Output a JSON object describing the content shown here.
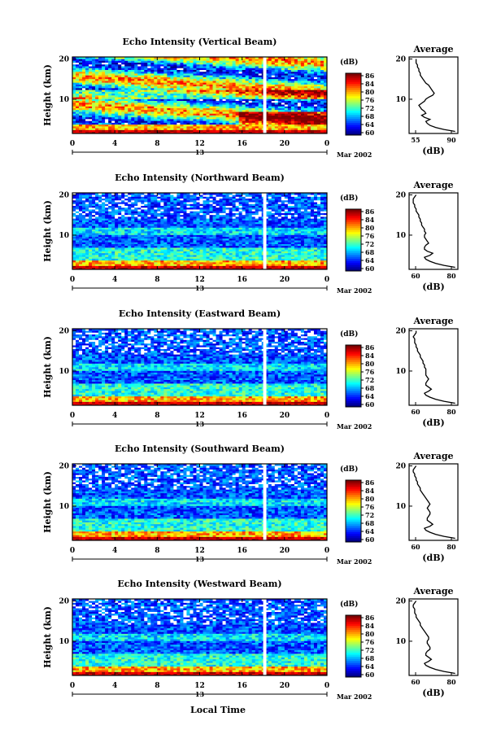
{
  "figure": {
    "xlabel": "Local Time",
    "ylabel": "Height (km)",
    "date_label": "Mar 2002",
    "colorbar_unit": "(dB)",
    "average_title": "Average",
    "average_xlabel": "(dB)"
  },
  "chart_data": [
    {
      "type": "heatmap",
      "title": "Echo Intensity (Vertical Beam)",
      "x_ticks": [
        "0",
        "4",
        "8",
        "12",
        "16",
        "20",
        "0"
      ],
      "x_range": [
        0,
        24
      ],
      "day_label": "13",
      "y_ticks": [
        "20",
        "10"
      ],
      "y_range": [
        1.5,
        20.5
      ],
      "gap_time": 18.1,
      "colorbar": {
        "ticks": [
          "86",
          "84",
          "80",
          "76",
          "72",
          "68",
          "64",
          "60"
        ],
        "range": [
          60,
          86
        ]
      },
      "profile": {
        "xlim": [
          55,
          90
        ],
        "x_ticks": [
          "55",
          "90"
        ],
        "y_ticks": [
          "20",
          "10"
        ],
        "heights": [
          2,
          2.5,
          3,
          3.5,
          4,
          4.5,
          5,
          5.5,
          6,
          6.5,
          7,
          7.5,
          8,
          8.5,
          9,
          9.5,
          10,
          10.5,
          11,
          11.5,
          12,
          12.5,
          13,
          13.5,
          14,
          14.5,
          15,
          15.5,
          16,
          16.5,
          17,
          17.5,
          18,
          18.5,
          19,
          19.5,
          20
        ],
        "values": [
          88,
          80,
          74,
          70,
          68,
          67,
          70,
          66,
          64,
          67,
          66,
          64,
          63,
          62,
          64,
          66,
          67,
          69,
          72,
          73,
          72,
          71,
          70,
          69,
          67,
          66,
          65,
          64,
          63,
          63,
          62,
          62,
          61,
          61,
          60,
          60,
          60
        ]
      }
    },
    {
      "type": "heatmap",
      "title": "Echo Intensity (Northward Beam)",
      "x_ticks": [
        "0",
        "4",
        "8",
        "12",
        "16",
        "20",
        "0"
      ],
      "x_range": [
        0,
        24
      ],
      "day_label": "13",
      "y_ticks": [
        "20",
        "10"
      ],
      "y_range": [
        1.5,
        20.5
      ],
      "gap_time": 18.1,
      "colorbar": {
        "ticks": [
          "86",
          "84",
          "80",
          "76",
          "72",
          "68",
          "64",
          "60"
        ],
        "range": [
          60,
          86
        ]
      },
      "profile": {
        "xlim": [
          55,
          90
        ],
        "x_ticks": [
          "60",
          "80"
        ],
        "y_ticks": [
          "20",
          "10"
        ],
        "heights": [
          2,
          2.5,
          3,
          3.5,
          4,
          4.5,
          5,
          5.5,
          6,
          6.5,
          7,
          7.5,
          8,
          8.5,
          9,
          9.5,
          10,
          10.5,
          11,
          11.5,
          12,
          12.5,
          13,
          13.5,
          14,
          14.5,
          15,
          15.5,
          16,
          16.5,
          17,
          17.5,
          18,
          18.5,
          19,
          19.5,
          20
        ],
        "values": [
          88,
          80,
          74,
          70,
          67,
          66,
          70,
          72,
          68,
          66,
          66,
          67,
          69,
          68,
          67,
          66,
          66,
          67,
          66,
          66,
          65,
          64,
          64,
          63,
          63,
          62,
          62,
          61,
          60,
          60,
          59,
          59,
          58,
          58,
          58,
          59,
          60
        ]
      }
    },
    {
      "type": "heatmap",
      "title": "Echo Intensity (Eastward Beam)",
      "x_ticks": [
        "0",
        "4",
        "8",
        "12",
        "16",
        "20",
        "0"
      ],
      "x_range": [
        0,
        24
      ],
      "day_label": "13",
      "y_ticks": [
        "20",
        "10"
      ],
      "y_range": [
        1.5,
        20.5
      ],
      "gap_time": 18.1,
      "colorbar": {
        "ticks": [
          "86",
          "84",
          "80",
          "76",
          "72",
          "68",
          "64",
          "60"
        ],
        "range": [
          60,
          86
        ]
      },
      "profile": {
        "xlim": [
          55,
          90
        ],
        "x_ticks": [
          "60",
          "80"
        ],
        "y_ticks": [
          "20",
          "10"
        ],
        "heights": [
          2,
          2.5,
          3,
          3.5,
          4,
          4.5,
          5,
          5.5,
          6,
          6.5,
          7,
          7.5,
          8,
          8.5,
          9,
          9.5,
          10,
          10.5,
          11,
          11.5,
          12,
          12.5,
          13,
          13.5,
          14,
          14.5,
          15,
          15.5,
          16,
          16.5,
          17,
          17.5,
          18,
          18.5,
          19,
          19.5,
          20
        ],
        "values": [
          88,
          80,
          74,
          70,
          67,
          66,
          69,
          71,
          69,
          67,
          67,
          68,
          69,
          68,
          67,
          67,
          67,
          67,
          66,
          66,
          65,
          65,
          64,
          63,
          63,
          62,
          61,
          61,
          60,
          60,
          59,
          59,
          59,
          58,
          59,
          60,
          60
        ]
      }
    },
    {
      "type": "heatmap",
      "title": "Echo Intensity (Southward Beam)",
      "x_ticks": [
        "0",
        "4",
        "8",
        "12",
        "16",
        "20",
        "0"
      ],
      "x_range": [
        0,
        24
      ],
      "day_label": "13",
      "y_ticks": [
        "20",
        "10"
      ],
      "y_range": [
        1.5,
        20.5
      ],
      "gap_time": 18.1,
      "colorbar": {
        "ticks": [
          "86",
          "84",
          "80",
          "76",
          "72",
          "68",
          "64",
          "60"
        ],
        "range": [
          60,
          86
        ]
      },
      "profile": {
        "xlim": [
          55,
          90
        ],
        "x_ticks": [
          "60",
          "80"
        ],
        "y_ticks": [
          "20",
          "10"
        ],
        "heights": [
          2,
          2.5,
          3,
          3.5,
          4,
          4.5,
          5,
          5.5,
          6,
          6.5,
          7,
          7.5,
          8,
          8.5,
          9,
          9.5,
          10,
          10.5,
          11,
          11.5,
          12,
          12.5,
          13,
          13.5,
          14,
          14.5,
          15,
          15.5,
          16,
          16.5,
          17,
          17.5,
          18,
          18.5,
          19,
          19.5,
          20
        ],
        "values": [
          88,
          80,
          74,
          70,
          67,
          66,
          70,
          72,
          70,
          68,
          68,
          69,
          70,
          70,
          69,
          68,
          69,
          70,
          69,
          68,
          67,
          66,
          65,
          64,
          63,
          63,
          62,
          61,
          61,
          60,
          60,
          59,
          59,
          58,
          58,
          59,
          60
        ]
      }
    },
    {
      "type": "heatmap",
      "title": "Echo Intensity (Westward Beam)",
      "x_ticks": [
        "0",
        "4",
        "8",
        "12",
        "16",
        "20",
        "0"
      ],
      "x_range": [
        0,
        24
      ],
      "day_label": "13",
      "y_ticks": [
        "20",
        "10"
      ],
      "y_range": [
        1.5,
        20.5
      ],
      "gap_time": 18.1,
      "colorbar": {
        "ticks": [
          "86",
          "84",
          "80",
          "76",
          "72",
          "68",
          "64",
          "60"
        ],
        "range": [
          60,
          86
        ]
      },
      "profile": {
        "xlim": [
          55,
          90
        ],
        "x_ticks": [
          "60",
          "80"
        ],
        "y_ticks": [
          "20",
          "10"
        ],
        "heights": [
          2,
          2.5,
          3,
          3.5,
          4,
          4.5,
          5,
          5.5,
          6,
          6.5,
          7,
          7.5,
          8,
          8.5,
          9,
          9.5,
          10,
          10.5,
          11,
          11.5,
          12,
          12.5,
          13,
          13.5,
          14,
          14.5,
          15,
          15.5,
          16,
          16.5,
          17,
          17.5,
          18,
          18.5,
          19,
          19.5,
          20
        ],
        "values": [
          88,
          80,
          74,
          70,
          67,
          66,
          69,
          71,
          69,
          67,
          67,
          68,
          70,
          70,
          69,
          68,
          68,
          69,
          69,
          68,
          67,
          66,
          65,
          64,
          63,
          63,
          62,
          61,
          60,
          60,
          59,
          59,
          59,
          58,
          58,
          59,
          60
        ]
      }
    }
  ]
}
